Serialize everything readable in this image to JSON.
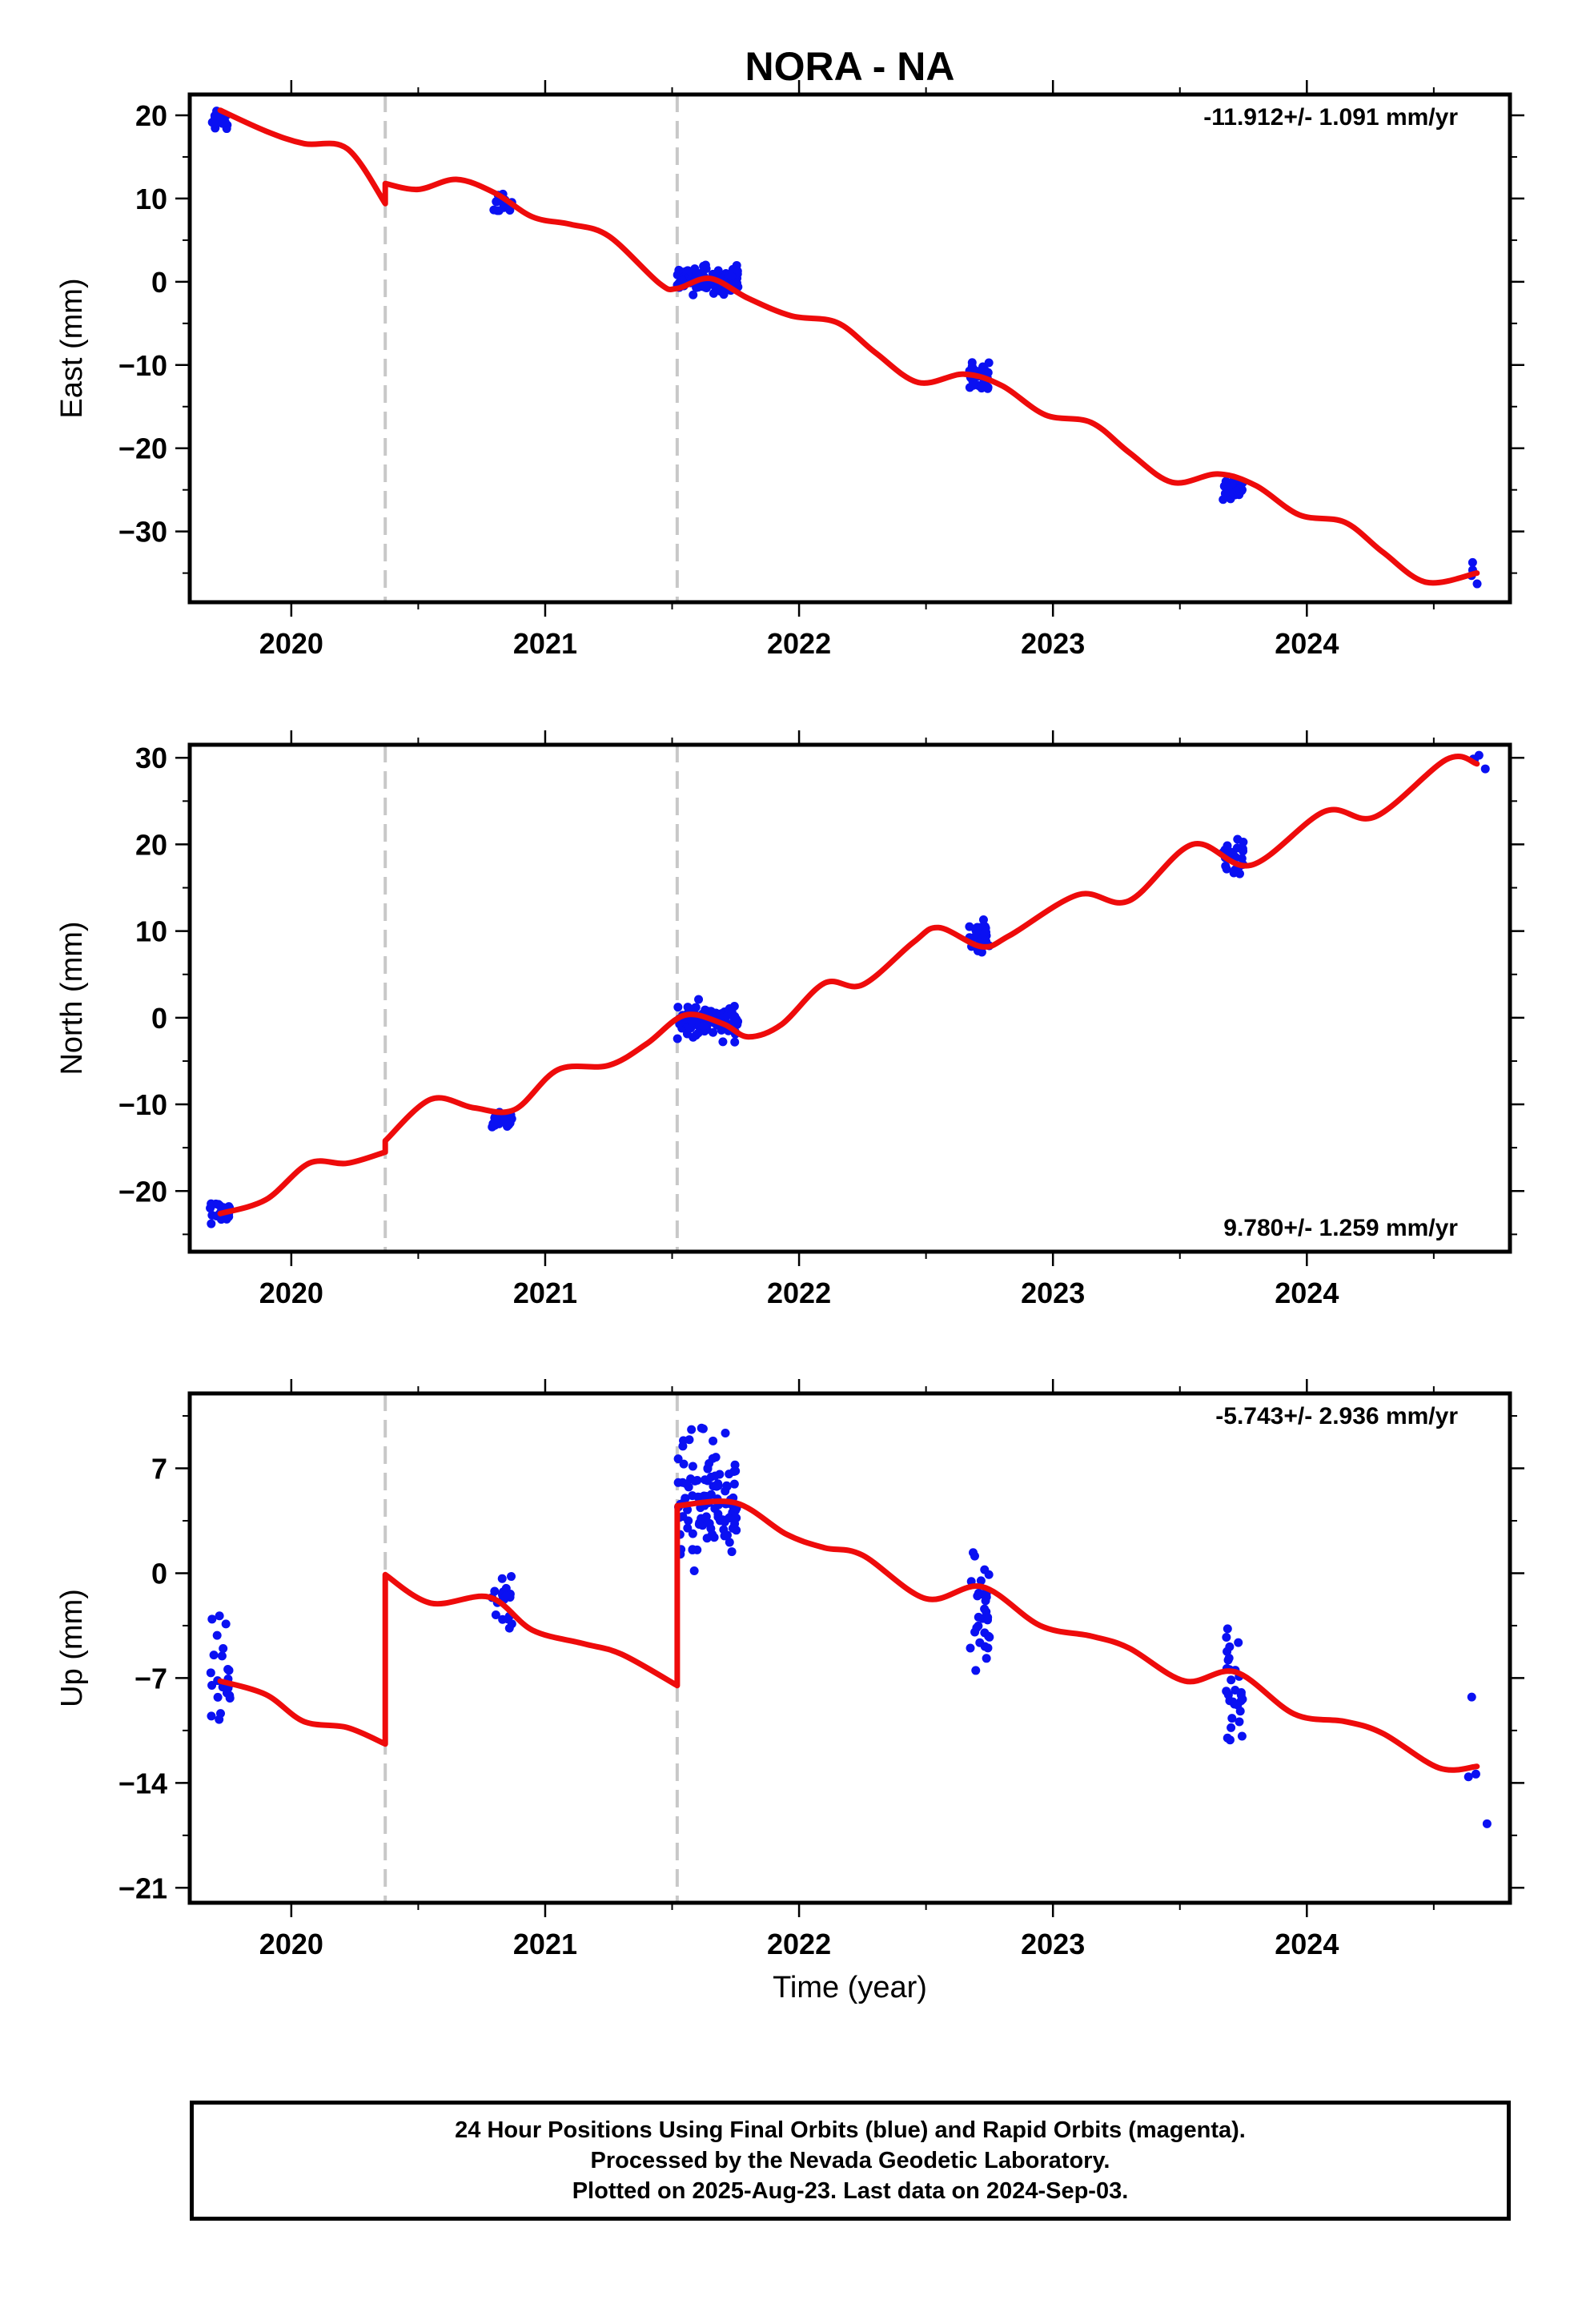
{
  "chart_data": [
    {
      "type": "scatter",
      "title": "NORA - NA",
      "ylabel": "East (mm)",
      "xlabel": "",
      "xlim": [
        2019.6,
        2024.8
      ],
      "ylim": [
        -38.5,
        22.5
      ],
      "yticks": [
        20,
        10,
        0,
        -10,
        -20,
        -30
      ],
      "xticks": [
        2020,
        2021,
        2022,
        2023,
        2024
      ],
      "rate_label": "-11.912+/- 1.091 mm/yr",
      "offsets": [
        2020.37,
        2021.52
      ],
      "observations": [
        {
          "x": 2019.72,
          "y": 19.3,
          "n": 24,
          "sd": 0.9
        },
        {
          "x": 2020.83,
          "y": 9.5,
          "n": 20,
          "sd": 1.0
        },
        {
          "x": 2021.64,
          "y": 0.2,
          "n": 110,
          "sd": 1.3
        },
        {
          "x": 2022.71,
          "y": -11.2,
          "n": 30,
          "sd": 1.2
        },
        {
          "x": 2023.71,
          "y": -24.8,
          "n": 30,
          "sd": 1.4
        },
        {
          "x": 2024.67,
          "y": -35.5,
          "n": 4,
          "sd": 1.4
        }
      ],
      "model": [
        [
          2019.72,
          20.6
        ],
        [
          2019.9,
          18.1
        ],
        [
          2020.05,
          16.6
        ],
        [
          2020.22,
          16.0
        ],
        [
          2020.37,
          9.4
        ],
        [
          2020.37,
          11.8
        ],
        [
          2020.5,
          11.1
        ],
        [
          2020.65,
          12.3
        ],
        [
          2020.8,
          10.7
        ],
        [
          2020.95,
          7.8
        ],
        [
          2021.1,
          6.9
        ],
        [
          2021.25,
          5.5
        ],
        [
          2021.45,
          -0.2
        ],
        [
          2021.52,
          -0.8
        ],
        [
          2021.65,
          0.4
        ],
        [
          2021.8,
          -2.0
        ],
        [
          2021.97,
          -4.1
        ],
        [
          2022.15,
          -4.9
        ],
        [
          2022.3,
          -8.5
        ],
        [
          2022.47,
          -12.1
        ],
        [
          2022.65,
          -11.1
        ],
        [
          2022.8,
          -12.5
        ],
        [
          2022.97,
          -16.0
        ],
        [
          2023.15,
          -16.9
        ],
        [
          2023.3,
          -20.5
        ],
        [
          2023.47,
          -24.1
        ],
        [
          2023.65,
          -23.1
        ],
        [
          2023.8,
          -24.5
        ],
        [
          2023.97,
          -28.0
        ],
        [
          2024.15,
          -28.9
        ],
        [
          2024.3,
          -32.5
        ],
        [
          2024.47,
          -36.1
        ],
        [
          2024.67,
          -35.0
        ]
      ]
    },
    {
      "type": "scatter",
      "ylabel": "North (mm)",
      "xlabel": "",
      "xlim": [
        2019.6,
        2024.8
      ],
      "ylim": [
        -27.0,
        31.5
      ],
      "yticks": [
        30,
        20,
        10,
        0,
        -10,
        -20
      ],
      "xticks": [
        2020,
        2021,
        2022,
        2023,
        2024
      ],
      "rate_label": "9.780+/- 1.259 mm/yr",
      "offsets": [
        2020.37,
        2021.52
      ],
      "observations": [
        {
          "x": 2019.72,
          "y": -22.3,
          "n": 24,
          "sd": 1.1
        },
        {
          "x": 2020.83,
          "y": -11.8,
          "n": 20,
          "sd": 0.9
        },
        {
          "x": 2021.64,
          "y": -0.4,
          "n": 110,
          "sd": 1.6
        },
        {
          "x": 2022.71,
          "y": 9.6,
          "n": 30,
          "sd": 1.6
        },
        {
          "x": 2023.71,
          "y": 18.5,
          "n": 30,
          "sd": 1.8
        },
        {
          "x": 2024.67,
          "y": 29.8,
          "n": 4,
          "sd": 0.9
        }
      ],
      "model": [
        [
          2019.72,
          -22.6
        ],
        [
          2019.9,
          -21.0
        ],
        [
          2020.07,
          -16.8
        ],
        [
          2020.22,
          -16.8
        ],
        [
          2020.37,
          -15.5
        ],
        [
          2020.37,
          -14.2
        ],
        [
          2020.55,
          -9.4
        ],
        [
          2020.72,
          -10.4
        ],
        [
          2020.88,
          -10.6
        ],
        [
          2021.05,
          -6.0
        ],
        [
          2021.25,
          -5.5
        ],
        [
          2021.4,
          -3.0
        ],
        [
          2021.55,
          0.3
        ],
        [
          2021.7,
          -0.7
        ],
        [
          2021.8,
          -2.2
        ],
        [
          2021.93,
          -0.8
        ],
        [
          2022.1,
          4.0
        ],
        [
          2022.25,
          3.8
        ],
        [
          2022.45,
          8.7
        ],
        [
          2022.55,
          10.4
        ],
        [
          2022.72,
          8.2
        ],
        [
          2022.83,
          9.5
        ],
        [
          2023.1,
          14.2
        ],
        [
          2023.3,
          13.5
        ],
        [
          2023.55,
          20.0
        ],
        [
          2023.78,
          17.6
        ],
        [
          2024.07,
          23.8
        ],
        [
          2024.27,
          23.2
        ],
        [
          2024.55,
          29.8
        ],
        [
          2024.67,
          29.3
        ]
      ]
    },
    {
      "type": "scatter",
      "ylabel": "Up (mm)",
      "xlabel": "Time (year)",
      "xlim": [
        2019.6,
        2024.8
      ],
      "ylim": [
        -22.0,
        12.0
      ],
      "yticks": [
        7,
        0,
        -7,
        -14,
        -21
      ],
      "ytick_labels": [
        "7",
        "0",
        "-7",
        "-14",
        "-21"
      ],
      "xticks": [
        2020,
        2021,
        2022,
        2023,
        2024
      ],
      "rate_label": "-5.743+/- 2.936 mm/yr",
      "offsets": [
        2020.37,
        2021.52
      ],
      "observations": [
        {
          "x": 2019.72,
          "y": -6.8,
          "n": 24,
          "sd": 3.0
        },
        {
          "x": 2020.83,
          "y": -2.0,
          "n": 20,
          "sd": 2.2
        },
        {
          "x": 2021.64,
          "y": 4.5,
          "n": 110,
          "sd": 3.5
        },
        {
          "x": 2022.71,
          "y": -2.0,
          "n": 30,
          "sd": 4.0
        },
        {
          "x": 2023.71,
          "y": -7.5,
          "n": 30,
          "sd": 3.3
        },
        {
          "x": 2024.67,
          "y": -13.5,
          "n": 4,
          "sd": 4.0
        }
      ],
      "model": [
        [
          2019.72,
          -7.2
        ],
        [
          2019.9,
          -8.1
        ],
        [
          2020.05,
          -9.9
        ],
        [
          2020.22,
          -10.3
        ],
        [
          2020.37,
          -11.4
        ],
        [
          2020.37,
          -0.1
        ],
        [
          2020.55,
          -2.0
        ],
        [
          2020.78,
          -1.6
        ],
        [
          2020.95,
          -3.8
        ],
        [
          2021.15,
          -4.7
        ],
        [
          2021.3,
          -5.4
        ],
        [
          2021.52,
          -7.5
        ],
        [
          2021.52,
          4.5
        ],
        [
          2021.75,
          4.7
        ],
        [
          2021.95,
          2.6
        ],
        [
          2022.1,
          1.7
        ],
        [
          2022.25,
          1.2
        ],
        [
          2022.5,
          -1.7
        ],
        [
          2022.72,
          -0.9
        ],
        [
          2022.95,
          -3.5
        ],
        [
          2023.15,
          -4.2
        ],
        [
          2023.3,
          -5.0
        ],
        [
          2023.52,
          -7.2
        ],
        [
          2023.72,
          -6.6
        ],
        [
          2023.95,
          -9.4
        ],
        [
          2024.15,
          -9.9
        ],
        [
          2024.3,
          -10.7
        ],
        [
          2024.52,
          -13.0
        ],
        [
          2024.67,
          -12.9
        ]
      ]
    }
  ],
  "colors": {
    "observation": "#0a10f2",
    "model": "#ee0b0b",
    "offset_line": "#c8c8c8",
    "frame": "#000000"
  },
  "footer": {
    "line1": "24 Hour Positions Using Final Orbits (blue) and Rapid Orbits (magenta).",
    "line2": "Processed by the Nevada Geodetic Laboratory.",
    "line3": "Plotted on 2025-Aug-23. Last data on 2024-Sep-03."
  }
}
